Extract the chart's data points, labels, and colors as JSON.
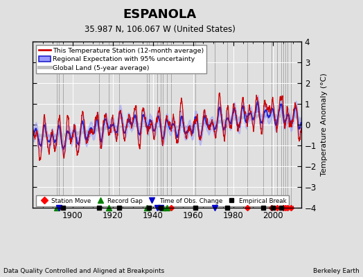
{
  "title": "ESPANOLA",
  "subtitle": "35.987 N, 106.067 W (United States)",
  "ylabel": "Temperature Anomaly (°C)",
  "xlabel_note": "Data Quality Controlled and Aligned at Breakpoints",
  "credit": "Berkeley Earth",
  "xlim": [
    1880,
    2014
  ],
  "ylim": [
    -4,
    4
  ],
  "yticks": [
    -4,
    -3,
    -2,
    -1,
    0,
    1,
    2,
    3,
    4
  ],
  "xticks": [
    1900,
    1920,
    1940,
    1960,
    1980,
    2000
  ],
  "bg_color": "#e0e0e0",
  "station_moves": [
    1893,
    1949,
    1987,
    1999,
    2002,
    2005,
    2006,
    2007,
    2009
  ],
  "record_gaps": [
    1892,
    1918,
    1937,
    1945,
    1947
  ],
  "obs_changes": [
    1893,
    1942,
    1944,
    1971
  ],
  "emp_breaks": [
    1895,
    1913,
    1923,
    1938,
    1944,
    1961,
    1977,
    1995,
    2000,
    2004
  ]
}
